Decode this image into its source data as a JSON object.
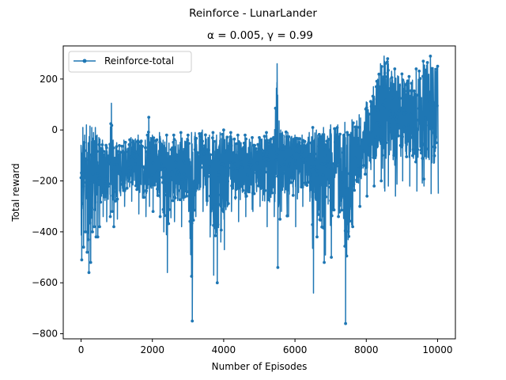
{
  "chart_data": {
    "type": "line",
    "suptitle": "Reinforce - LunarLander",
    "title": "α = 0.005, γ = 0.99",
    "xlabel": "Number of Episodes",
    "ylabel": "Total reward",
    "xlim": [
      -500,
      10500
    ],
    "ylim": [
      -820,
      330
    ],
    "xticks": [
      0,
      2000,
      4000,
      6000,
      8000,
      10000
    ],
    "yticks": [
      -800,
      -600,
      -400,
      -200,
      0,
      200
    ],
    "grid": false,
    "legend": {
      "position": "top-left",
      "entries": [
        "Reinforce-total"
      ]
    },
    "series": [
      {
        "name": "Reinforce-total",
        "color": "#1f77b4",
        "marker": "circle",
        "episodes": 10000,
        "notes_points_shown": "dense noisy trace sampled; representative envelope values",
        "x": [
          0,
          50,
          100,
          150,
          200,
          250,
          300,
          350,
          400,
          450,
          500,
          600,
          700,
          800,
          850,
          900,
          1000,
          1200,
          1400,
          1600,
          1800,
          1900,
          2000,
          2200,
          2300,
          2400,
          2600,
          2800,
          3000,
          3100,
          3200,
          3400,
          3600,
          3700,
          3800,
          3900,
          4000,
          4200,
          4400,
          4600,
          4800,
          5000,
          5200,
          5400,
          5500,
          5600,
          5800,
          6000,
          6200,
          6400,
          6500,
          6600,
          6800,
          7000,
          7200,
          7400,
          7600,
          7800,
          8000,
          8200,
          8400,
          8500,
          8600,
          8800,
          9000,
          9200,
          9400,
          9600,
          9800,
          10000
        ],
        "upper": [
          -60,
          10,
          -20,
          20,
          -50,
          15,
          10,
          -10,
          10,
          -20,
          -30,
          -40,
          -60,
          -60,
          105,
          -40,
          -50,
          -40,
          -30,
          -20,
          -40,
          50,
          -20,
          -10,
          -40,
          -20,
          -20,
          -10,
          -20,
          -10,
          -10,
          0,
          -20,
          -10,
          -20,
          -10,
          0,
          -10,
          -20,
          -20,
          -30,
          -30,
          -10,
          -30,
          260,
          0,
          -10,
          -20,
          -20,
          -10,
          10,
          0,
          10,
          20,
          20,
          30,
          40,
          60,
          110,
          170,
          260,
          290,
          280,
          240,
          220,
          210,
          240,
          270,
          290,
          250
        ],
        "lower": [
          -510,
          -460,
          -400,
          -480,
          -560,
          -520,
          -400,
          -380,
          -420,
          -420,
          -380,
          -340,
          -360,
          -340,
          -320,
          -380,
          -350,
          -300,
          -280,
          -330,
          -340,
          -300,
          -320,
          -340,
          -400,
          -560,
          -360,
          -380,
          -320,
          -750,
          -340,
          -320,
          -420,
          -570,
          -600,
          -440,
          -470,
          -320,
          -360,
          -340,
          -320,
          -300,
          -380,
          -340,
          -540,
          -320,
          -340,
          -380,
          -300,
          -280,
          -640,
          -420,
          -520,
          -500,
          -340,
          -760,
          -380,
          -300,
          -260,
          -220,
          -200,
          -240,
          -220,
          -260,
          -200,
          -220,
          -240,
          -220,
          -250,
          -250
        ]
      }
    ]
  }
}
